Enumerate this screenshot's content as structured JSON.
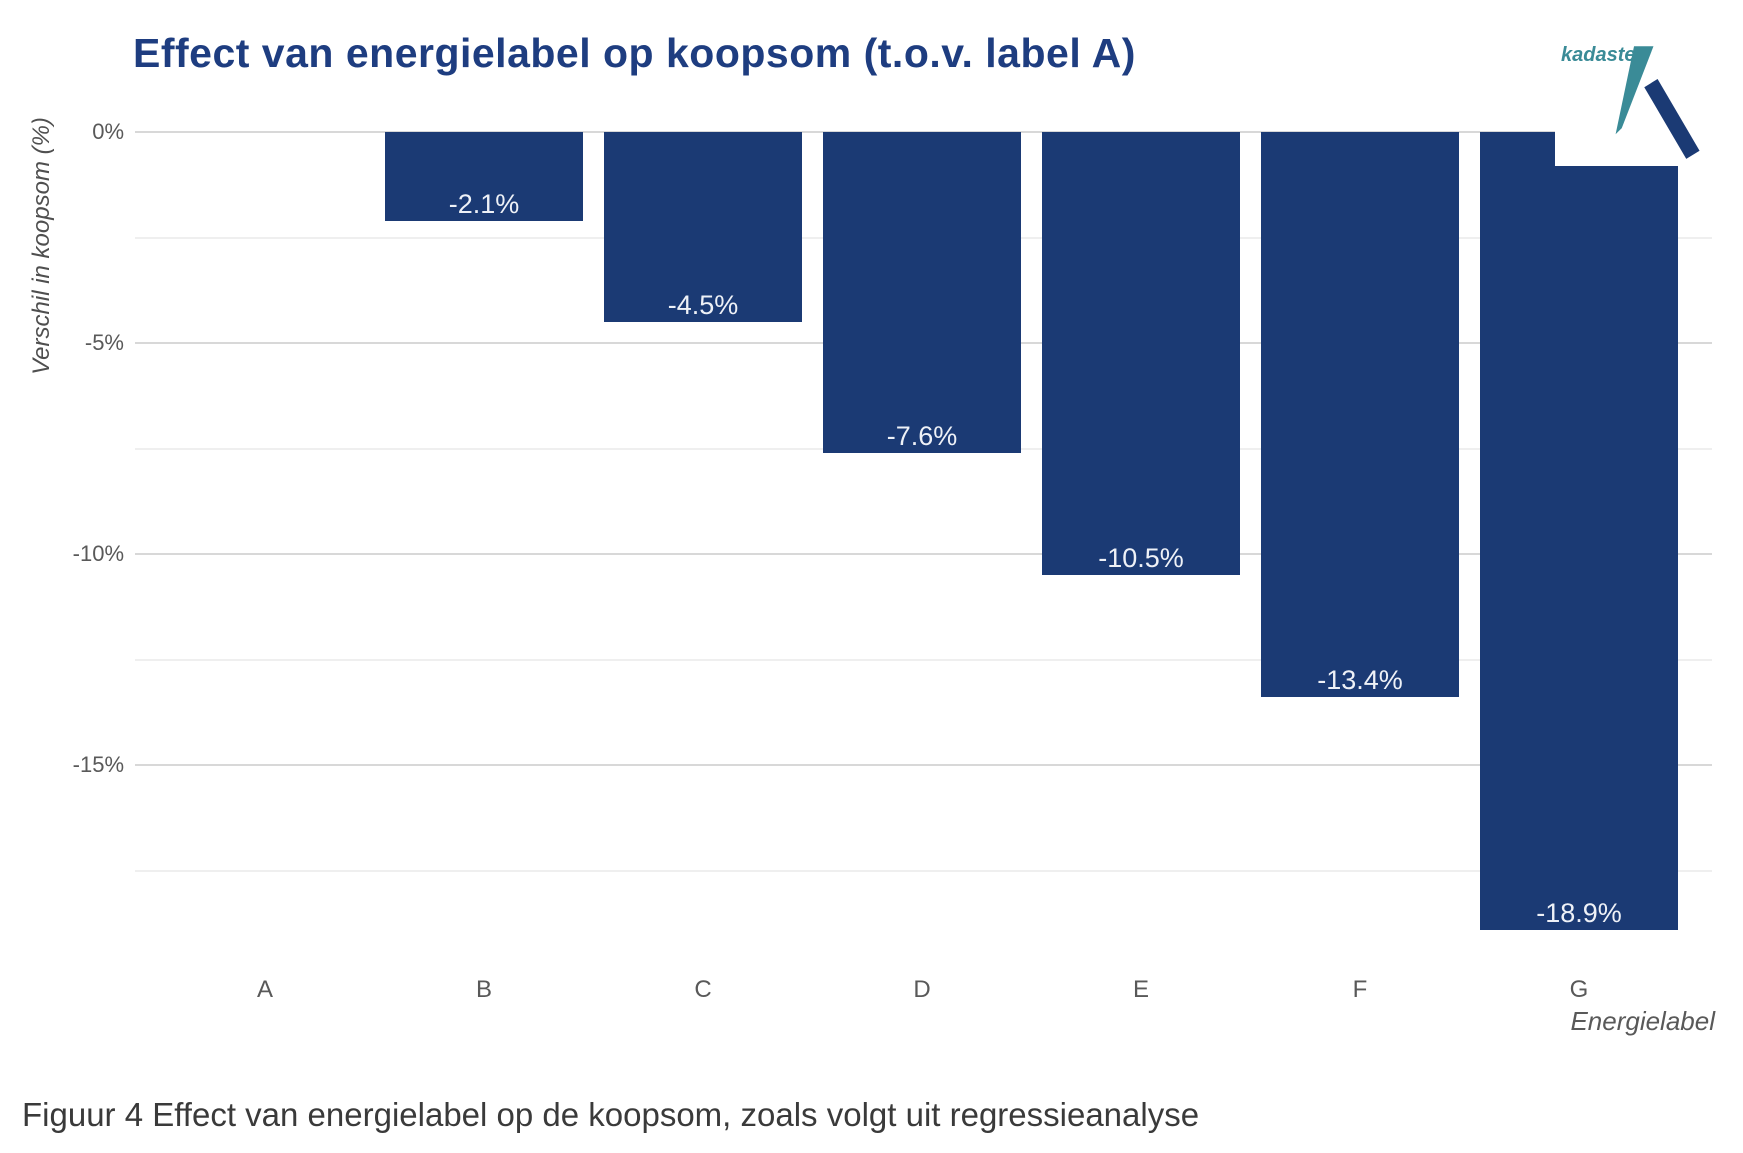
{
  "title": "Effect van energielabel op koopsom (t.o.v. label A)",
  "caption": "Figuur 4 Effect van energielabel op de koopsom, zoals volgt uit regressieanalyse",
  "logo": {
    "text": "kadaster"
  },
  "colors": {
    "bar": "#1b3a74",
    "title": "#1e3d80",
    "logo_teal": "#3a8b97",
    "logo_blue": "#1b3a74",
    "gridline_major": "#d8d8d8",
    "gridline_minor": "#efefef",
    "axis_text": "#595959",
    "bar_label_text": "#eef1f7"
  },
  "chart_data": {
    "type": "bar",
    "title": "Effect van energielabel op koopsom (t.o.v. label A)",
    "categories": [
      "A",
      "B",
      "C",
      "D",
      "E",
      "F",
      "G"
    ],
    "values": [
      0,
      -2.1,
      -4.5,
      -7.6,
      -10.5,
      -13.4,
      -18.9
    ],
    "value_labels": [
      "",
      "-2.1%",
      "-4.5%",
      "-7.6%",
      "-10.5%",
      "-13.4%",
      "-18.9%"
    ],
    "xlabel": "Energielabel",
    "ylabel": "Verschil in koopsom (%)",
    "ylim": [
      -19.5,
      0
    ],
    "yticks": [
      {
        "value": 0,
        "label": "0%"
      },
      {
        "value": -5,
        "label": "-5%"
      },
      {
        "value": -10,
        "label": "-10%"
      },
      {
        "value": -15,
        "label": "-15%"
      }
    ],
    "minor_gridlines": [
      -2.5,
      -7.5,
      -12.5,
      -17.5
    ],
    "grid": true,
    "legend": false,
    "bar_color": "#1b3a74",
    "value_labels_position": "inside-bottom"
  }
}
